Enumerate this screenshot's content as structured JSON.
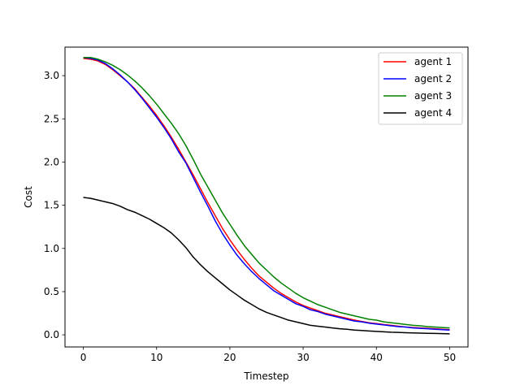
{
  "chart_data": {
    "type": "line",
    "title": "",
    "xlabel": "Timestep",
    "ylabel": "Cost",
    "xlim": [
      -2.5,
      52.5
    ],
    "ylim": [
      -0.14,
      3.33
    ],
    "xticks": [
      0,
      10,
      20,
      30,
      40,
      50
    ],
    "xtick_labels": [
      "0",
      "10",
      "20",
      "30",
      "40",
      "50"
    ],
    "yticks": [
      0.0,
      0.5,
      1.0,
      1.5,
      2.0,
      2.5,
      3.0
    ],
    "ytick_labels": [
      "0.0",
      "0.5",
      "1.0",
      "1.5",
      "2.0",
      "2.5",
      "3.0"
    ],
    "grid": false,
    "legend_position": "upper-right",
    "x": [
      0,
      1,
      2,
      3,
      4,
      5,
      6,
      7,
      8,
      9,
      10,
      11,
      12,
      13,
      14,
      15,
      16,
      17,
      18,
      19,
      20,
      21,
      22,
      23,
      24,
      25,
      26,
      27,
      28,
      29,
      30,
      31,
      32,
      33,
      34,
      35,
      36,
      37,
      38,
      39,
      40,
      41,
      42,
      43,
      44,
      45,
      46,
      47,
      48,
      49,
      50
    ],
    "series": [
      {
        "name": "agent 1",
        "color": "#ff0000",
        "values": [
          3.2,
          3.19,
          3.17,
          3.13,
          3.07,
          3.0,
          2.93,
          2.85,
          2.75,
          2.65,
          2.54,
          2.42,
          2.29,
          2.15,
          2.0,
          1.85,
          1.69,
          1.53,
          1.38,
          1.23,
          1.1,
          0.98,
          0.87,
          0.77,
          0.68,
          0.61,
          0.54,
          0.48,
          0.43,
          0.38,
          0.34,
          0.31,
          0.28,
          0.25,
          0.23,
          0.21,
          0.19,
          0.17,
          0.155,
          0.14,
          0.13,
          0.12,
          0.11,
          0.1,
          0.09,
          0.085,
          0.08,
          0.075,
          0.07,
          0.065,
          0.06
        ]
      },
      {
        "name": "agent 2",
        "color": "#0000ff",
        "values": [
          3.21,
          3.2,
          3.18,
          3.14,
          3.08,
          3.01,
          2.93,
          2.84,
          2.74,
          2.63,
          2.52,
          2.4,
          2.27,
          2.12,
          1.99,
          1.82,
          1.65,
          1.49,
          1.32,
          1.17,
          1.04,
          0.92,
          0.82,
          0.73,
          0.65,
          0.58,
          0.51,
          0.46,
          0.41,
          0.36,
          0.33,
          0.29,
          0.27,
          0.24,
          0.22,
          0.2,
          0.18,
          0.16,
          0.15,
          0.135,
          0.125,
          0.115,
          0.105,
          0.095,
          0.09,
          0.08,
          0.075,
          0.07,
          0.065,
          0.06,
          0.055
        ]
      },
      {
        "name": "agent 3",
        "color": "#008000",
        "values": [
          3.21,
          3.21,
          3.19,
          3.16,
          3.12,
          3.07,
          3.01,
          2.94,
          2.86,
          2.77,
          2.67,
          2.56,
          2.45,
          2.33,
          2.19,
          2.03,
          1.86,
          1.71,
          1.56,
          1.41,
          1.28,
          1.15,
          1.03,
          0.93,
          0.83,
          0.75,
          0.67,
          0.6,
          0.54,
          0.48,
          0.43,
          0.39,
          0.35,
          0.32,
          0.29,
          0.26,
          0.24,
          0.22,
          0.2,
          0.18,
          0.17,
          0.15,
          0.14,
          0.13,
          0.12,
          0.11,
          0.105,
          0.095,
          0.09,
          0.085,
          0.08
        ]
      },
      {
        "name": "agent 4",
        "color": "#000000",
        "values": [
          1.59,
          1.58,
          1.56,
          1.54,
          1.52,
          1.49,
          1.45,
          1.42,
          1.38,
          1.34,
          1.29,
          1.24,
          1.18,
          1.1,
          1.01,
          0.9,
          0.81,
          0.73,
          0.66,
          0.59,
          0.52,
          0.46,
          0.4,
          0.35,
          0.3,
          0.26,
          0.23,
          0.2,
          0.17,
          0.15,
          0.13,
          0.11,
          0.1,
          0.09,
          0.08,
          0.07,
          0.065,
          0.055,
          0.05,
          0.045,
          0.04,
          0.035,
          0.03,
          0.028,
          0.025,
          0.022,
          0.02,
          0.018,
          0.016,
          0.014,
          0.012
        ]
      }
    ]
  }
}
